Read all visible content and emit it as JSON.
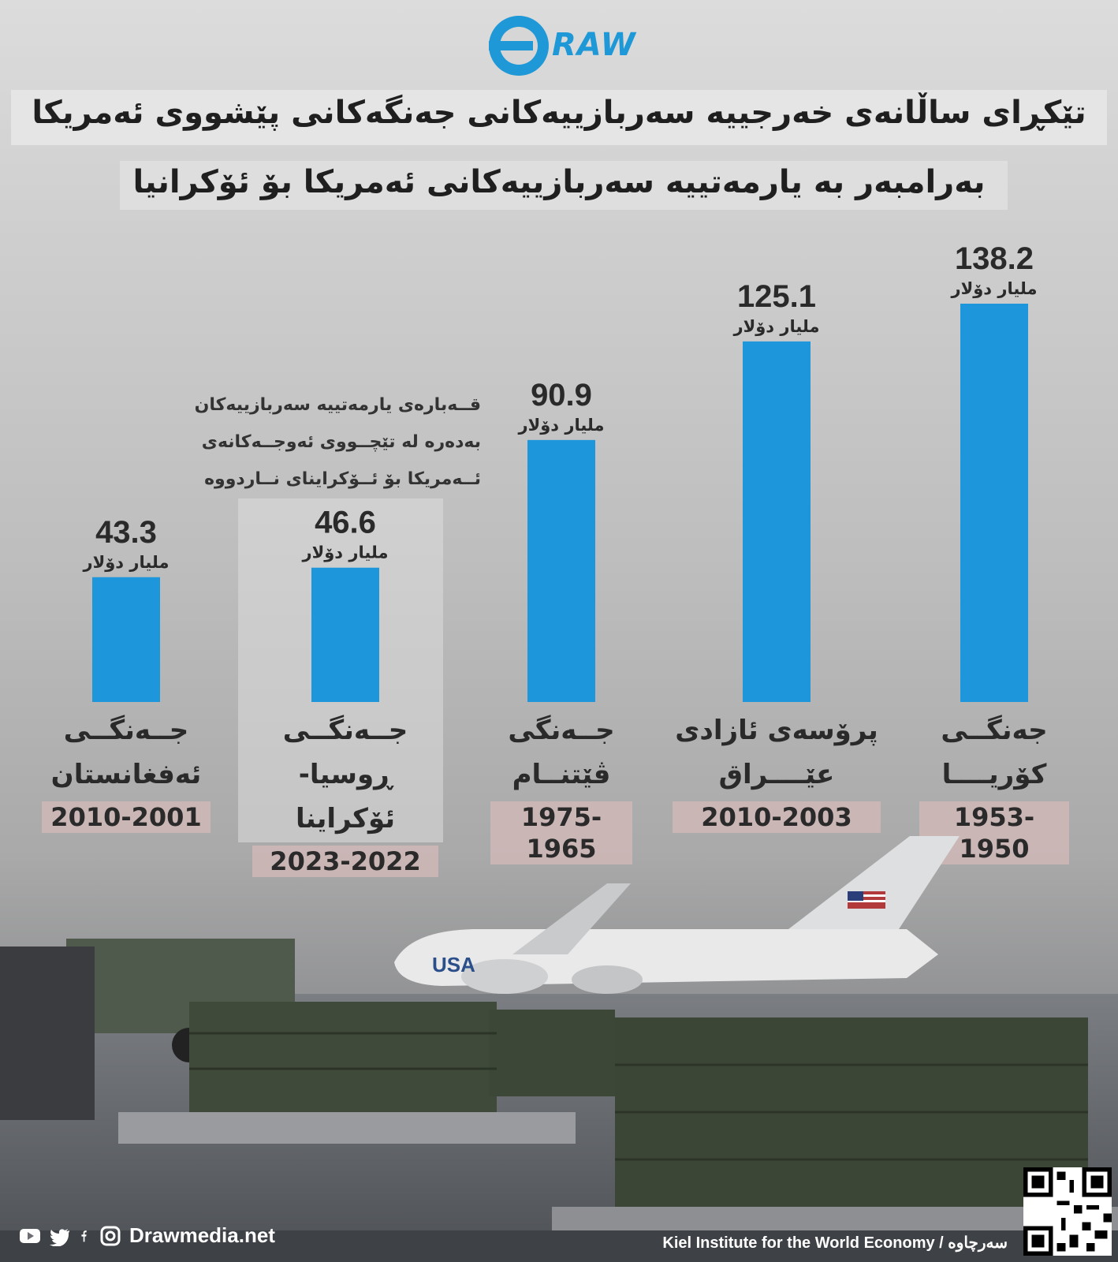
{
  "brand": {
    "logo_text": "RAW",
    "website": "Drawmedia.net"
  },
  "title": {
    "line1": "تێکڕای ساڵانەی خەرجییە سەربازییەکانی جەنگەکانی پێشووی ئەمریکا",
    "line2": "بەرامبەر بە یارمەتییە سەربازییەکانی ئەمریکا بۆ ئۆکرانیا"
  },
  "note": {
    "line1": "قــەبارەی یارمەتییە سەربازییەکان",
    "line2": "بەدەرە لە تێچــووی ئەوجــەکانەی",
    "line3": "ئــەمریکا بۆ ئــۆکرایناى نــاردووە"
  },
  "colors": {
    "bar": "#1e96dc",
    "accent": "#1e98d6",
    "year_band": "#d6baba"
  },
  "chart_data": {
    "type": "bar",
    "unit": "ملیار دۆلار",
    "ylim": [
      0,
      145
    ],
    "bars": [
      {
        "name_line1": "جــەنگــی",
        "name_line2": "ئەفغانستان",
        "years": "2010-2001",
        "value": 43.3,
        "value_label": "43.3"
      },
      {
        "name_line1": "جــەنگــی",
        "name_line2": "ڕوسیا-ئۆکراینا",
        "years": "2023-2022",
        "value": 46.6,
        "value_label": "46.6"
      },
      {
        "name_line1": "جــەنگی",
        "name_line2": "ڤێتنــام",
        "years": "1975-1965",
        "value": 90.9,
        "value_label": "90.9"
      },
      {
        "name_line1": "پرۆسەی ئازادی",
        "name_line2": "عێــــراق",
        "years": "2010-2003",
        "value": 125.1,
        "value_label": "125.1"
      },
      {
        "name_line1": "جەنگــی",
        "name_line2": "کۆریــــا",
        "years": "1953-1950",
        "value": 138.2,
        "value_label": "138.2"
      }
    ]
  },
  "footer": {
    "icons": [
      "youtube-icon",
      "twitter-icon",
      "facebook-icon",
      "instagram-icon"
    ],
    "source": "Kiel Institute for the World Economy / سەرچاوە"
  }
}
